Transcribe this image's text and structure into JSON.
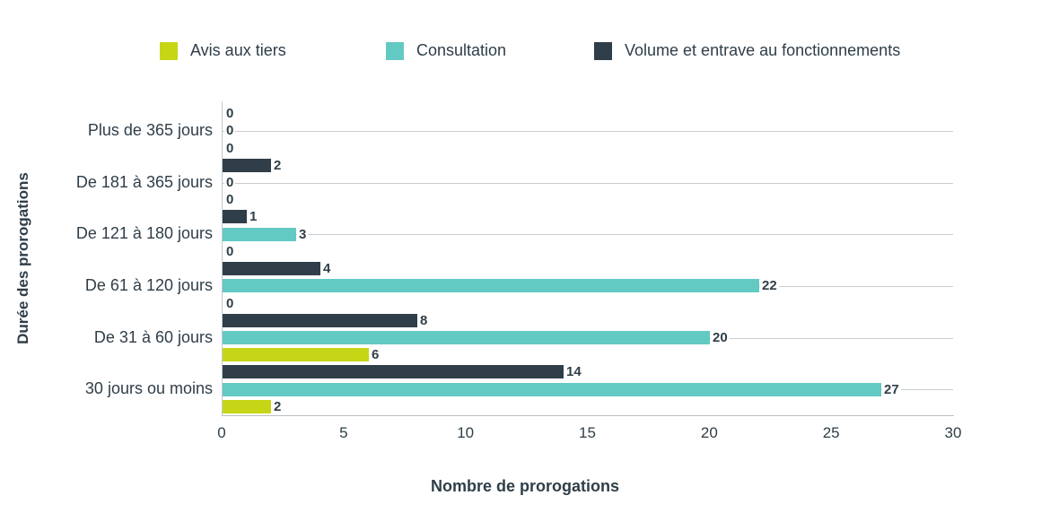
{
  "chart_data": {
    "type": "bar",
    "orientation": "horizontal",
    "title": "",
    "xlabel": "Nombre de prorogations",
    "ylabel": "Durée des prorogations",
    "xlim": [
      0,
      30
    ],
    "xticks": [
      0,
      5,
      10,
      15,
      20,
      25,
      30
    ],
    "grid": true,
    "legend_position": "top",
    "categories": [
      "Plus de 365 jours",
      "De 181 à 365 jours",
      "De 121 à 180 jours",
      "De 61 à 120 jours",
      "De 31 à 60 jours",
      "30 jours ou moins"
    ],
    "series": [
      {
        "name": "Avis aux tiers",
        "color": "#c6d616",
        "values": [
          0,
          0,
          0,
          0,
          6,
          2
        ]
      },
      {
        "name": "Consultation",
        "color": "#63c9c3",
        "values": [
          0,
          0,
          3,
          22,
          20,
          27
        ]
      },
      {
        "name": "Volume et entrave au fonctionnements",
        "color": "#2f3e49",
        "values": [
          0,
          2,
          1,
          4,
          8,
          14
        ]
      }
    ],
    "row_order_top_to_bottom": [
      "Volume et entrave au fonctionnements",
      "Consultation",
      "Avis aux tiers"
    ]
  },
  "colors": {
    "text": "#2f3e48",
    "gridline": "#c9cdd1",
    "axis_line": "#c2c7cb",
    "background": "#ffffff"
  }
}
